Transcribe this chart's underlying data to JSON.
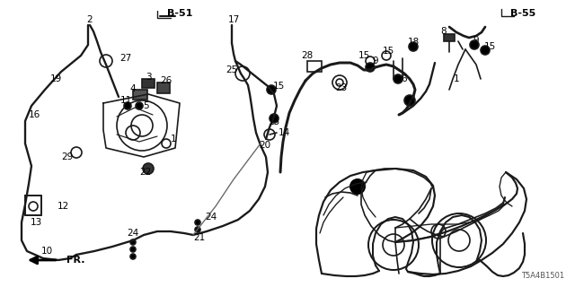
{
  "bg_color": "#ffffff",
  "diagram_code_tl": "B-51",
  "diagram_code_tr": "B-55",
  "part_code": "T5A4B1501",
  "lw": 1.2,
  "lc": "#1a1a1a",
  "figsize": [
    6.4,
    3.2
  ],
  "dpi": 100
}
